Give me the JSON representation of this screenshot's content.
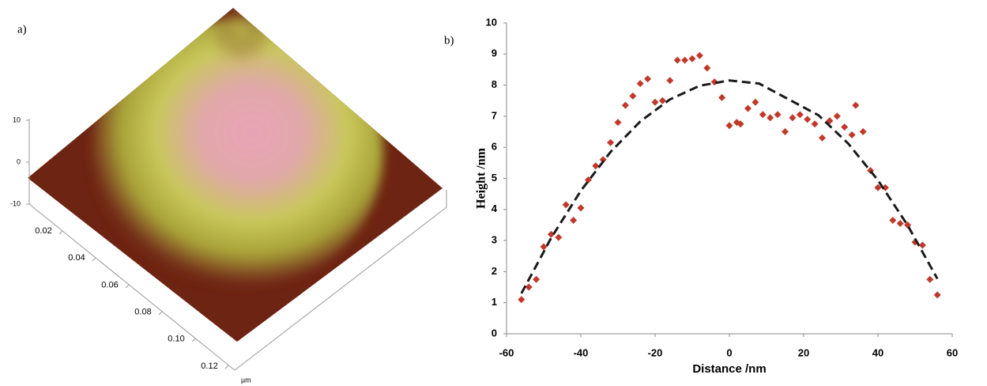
{
  "chart_data": [
    {
      "type": "surface",
      "panel_label": "a)",
      "zlim": [
        -10,
        10
      ],
      "zticks": [
        -10,
        0,
        10
      ],
      "xlim": [
        0,
        0.12
      ],
      "xticks": [
        0.02,
        0.04,
        0.06,
        0.08,
        {
          "value": 0.1,
          "label": "0.10"
        },
        0.12
      ],
      "xlabel": "µm"
    },
    {
      "type": "scatter",
      "panel_label": "b)",
      "xlabel": "Distance /nm",
      "ylabel": "Height /nm",
      "xlim": [
        -60,
        60
      ],
      "xticks": [
        -60,
        -40,
        -20,
        0,
        20,
        40,
        60
      ],
      "ylim": [
        0,
        10
      ],
      "yticks": [
        0,
        1,
        2,
        3,
        4,
        5,
        6,
        7,
        8,
        9,
        10
      ],
      "series": [
        {
          "type": "scatter",
          "marker": "diamond",
          "color": "#c0392b",
          "x": [
            -56,
            -54,
            -52,
            -50,
            -48,
            -46,
            -44,
            -42,
            -40,
            -38,
            -36,
            -34,
            -32,
            -30,
            -28,
            -26,
            -24,
            -22,
            -20,
            -18,
            -16,
            -14,
            -12,
            -10,
            -8,
            -6,
            -4,
            -2,
            0,
            2,
            3,
            5,
            7,
            9,
            11,
            13,
            15,
            17,
            19,
            21,
            23,
            25,
            27,
            29,
            31,
            33,
            34,
            36,
            38,
            40,
            42,
            44,
            46,
            48,
            50,
            52,
            54,
            56
          ],
          "values": [
            1.1,
            1.5,
            1.75,
            2.8,
            3.2,
            3.1,
            4.15,
            3.65,
            4.05,
            4.95,
            5.4,
            5.6,
            6.15,
            6.8,
            7.35,
            7.65,
            8.05,
            8.2,
            7.45,
            7.5,
            8.15,
            8.8,
            8.8,
            8.85,
            8.95,
            8.55,
            8.1,
            7.6,
            6.7,
            6.8,
            6.75,
            7.25,
            7.45,
            7.05,
            6.95,
            7.05,
            6.5,
            6.95,
            7.05,
            6.9,
            6.75,
            6.3,
            6.85,
            7.0,
            6.65,
            6.4,
            7.35,
            6.5,
            5.25,
            4.7,
            4.7,
            3.65,
            3.55,
            3.5,
            2.95,
            2.85,
            1.75,
            1.25
          ]
        },
        {
          "type": "line",
          "dash": true,
          "color": "#1a1a1a",
          "x": [
            -56,
            -48,
            -40,
            -32,
            -24,
            -16,
            -8,
            0,
            8,
            16,
            24,
            32,
            40,
            48,
            56
          ],
          "values": [
            1.3,
            3.08,
            4.6,
            5.85,
            6.83,
            7.54,
            7.98,
            8.15,
            8.05,
            7.54,
            7.03,
            6.12,
            4.94,
            3.49,
            1.77
          ]
        }
      ]
    }
  ]
}
